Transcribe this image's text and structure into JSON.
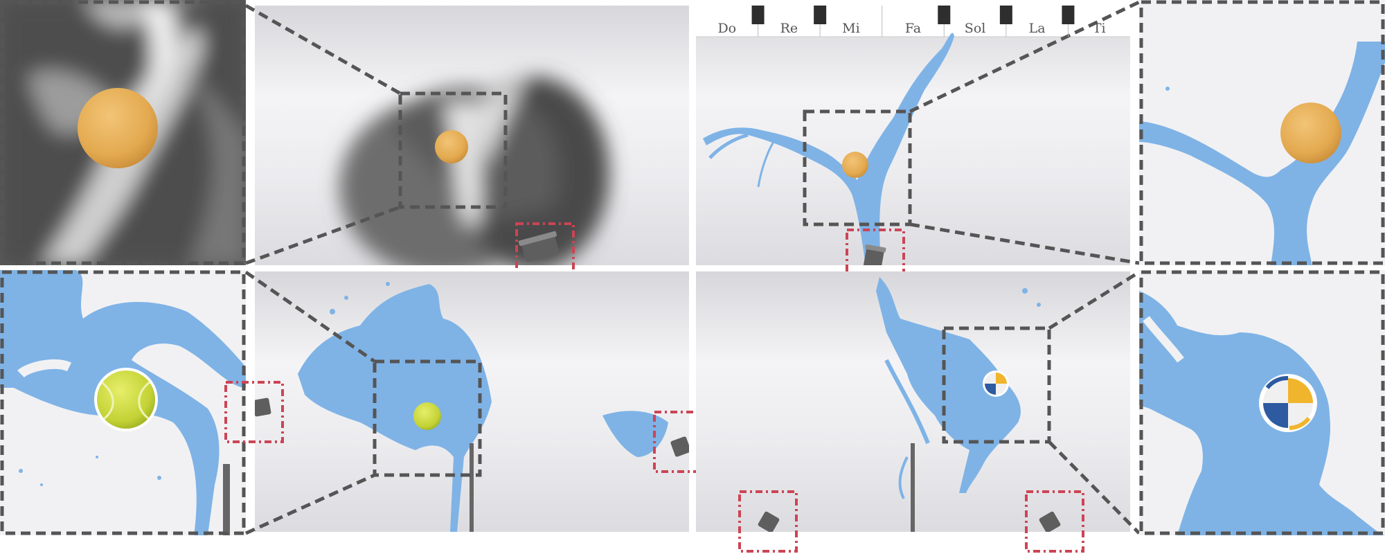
{
  "piano": {
    "notes": [
      "Do",
      "Re",
      "Mi",
      "Fa",
      "Sol",
      "La",
      "Ti"
    ]
  },
  "colors": {
    "water": "#7fb3e6",
    "background_light": "#f3f3f5",
    "background_mid": "#d9d9dd",
    "smoke_dark": "#4a4a4a",
    "ball_orange": "#e4ac55",
    "tennis_ball": "#c7d63a",
    "volleyball_blue": "#2d5aa0",
    "volleyball_yellow": "#f0b52c",
    "zoom_box": "#555555",
    "nozzle_box": "#cc4455",
    "nozzle": "#5c5c5c",
    "pole": "#666666"
  },
  "panels": [
    {
      "id": "smoke-zoom",
      "ball": "orange-ball-icon"
    },
    {
      "id": "smoke-scene",
      "ball": "orange-ball-icon",
      "nozzle": "nozzle-icon"
    },
    {
      "id": "piano-scene",
      "ball": "orange-ball-icon",
      "nozzle": "nozzle-icon"
    },
    {
      "id": "piano-zoom",
      "ball": "orange-ball-icon"
    },
    {
      "id": "tennis-zoom",
      "ball": "tennis-ball-icon"
    },
    {
      "id": "tennis-scene",
      "ball": "tennis-ball-icon",
      "nozzle": "nozzle-icon"
    },
    {
      "id": "volleyball-scene",
      "ball": "volleyball-icon",
      "nozzle": "nozzle-icon"
    },
    {
      "id": "volleyball-zoom",
      "ball": "volleyball-icon"
    }
  ]
}
